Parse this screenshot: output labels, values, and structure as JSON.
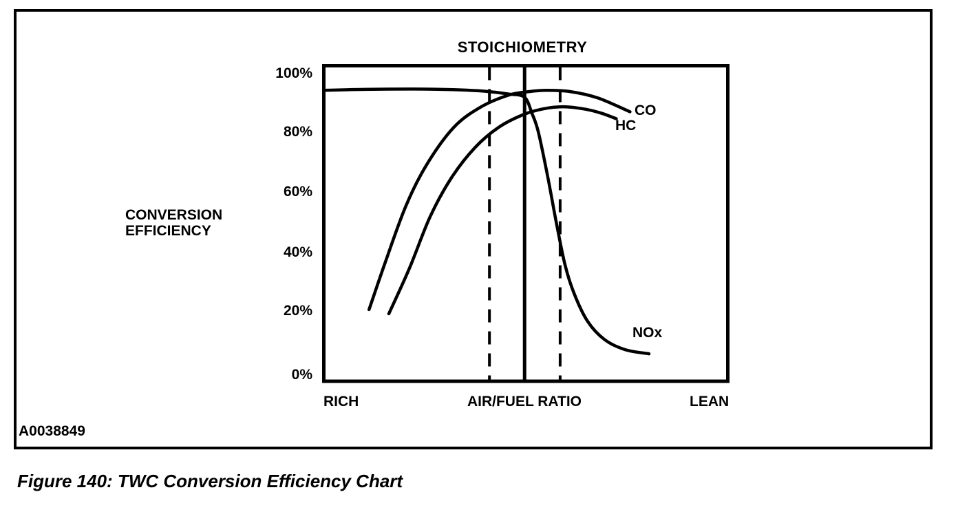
{
  "figure": {
    "code_label": "A0038849",
    "caption": "Figure 140: TWC Conversion Efficiency Chart"
  },
  "chart_data": {
    "type": "line",
    "title": "STOICHIOMETRY",
    "ylabel": "CONVERSION EFFICIENCY",
    "xlabel": "AIR/FUEL RATIO",
    "x_axis_labels": {
      "left": "RICH",
      "center": "AIR/FUEL RATIO",
      "right": "LEAN"
    },
    "y_ticks": [
      "100%",
      "80%",
      "60%",
      "40%",
      "20%",
      "0%"
    ],
    "y_tick_values": [
      100,
      80,
      60,
      40,
      20,
      0
    ],
    "ylim": [
      0,
      100
    ],
    "xlim": [
      0,
      100
    ],
    "grid": false,
    "legend_position": "curve-end-labels",
    "reference_lines": {
      "stoichiometry_x": 49.7,
      "dashed_window_x": [
        41.0,
        58.5
      ]
    },
    "series": [
      {
        "name": "NOx",
        "points": [
          [
            0,
            92.2
          ],
          [
            10,
            92.5
          ],
          [
            22,
            92.6
          ],
          [
            32,
            92.4
          ],
          [
            40,
            91.9
          ],
          [
            46,
            91.0
          ],
          [
            49.7,
            90.0
          ],
          [
            51.5,
            85.0
          ],
          [
            53.1,
            79.0
          ],
          [
            55.4,
            65.0
          ],
          [
            57.6,
            50.0
          ],
          [
            59.7,
            37.0
          ],
          [
            61.9,
            28.0
          ],
          [
            65.3,
            19.0
          ],
          [
            69.5,
            13.2
          ],
          [
            74.6,
            10.0
          ],
          [
            80.5,
            8.7
          ]
        ]
      },
      {
        "name": "CO",
        "points": [
          [
            11.2,
            22.7
          ],
          [
            15.3,
            38.0
          ],
          [
            20.3,
            55.5
          ],
          [
            25.4,
            68.5
          ],
          [
            32.2,
            80.5
          ],
          [
            39.0,
            87.0
          ],
          [
            45.8,
            90.7
          ],
          [
            50.8,
            91.8
          ],
          [
            55.1,
            92.2
          ],
          [
            61.0,
            91.8
          ],
          [
            67.8,
            89.8
          ],
          [
            75.8,
            85.4
          ]
        ]
      },
      {
        "name": "HC",
        "points": [
          [
            16.1,
            21.4
          ],
          [
            21.2,
            35.8
          ],
          [
            26.3,
            52.1
          ],
          [
            31.4,
            64.1
          ],
          [
            37.3,
            73.9
          ],
          [
            43.2,
            80.4
          ],
          [
            49.2,
            84.4
          ],
          [
            54.2,
            86.3
          ],
          [
            59.3,
            87.0
          ],
          [
            64.4,
            86.3
          ],
          [
            68.6,
            85.0
          ],
          [
            72.4,
            83.2
          ]
        ]
      }
    ]
  }
}
